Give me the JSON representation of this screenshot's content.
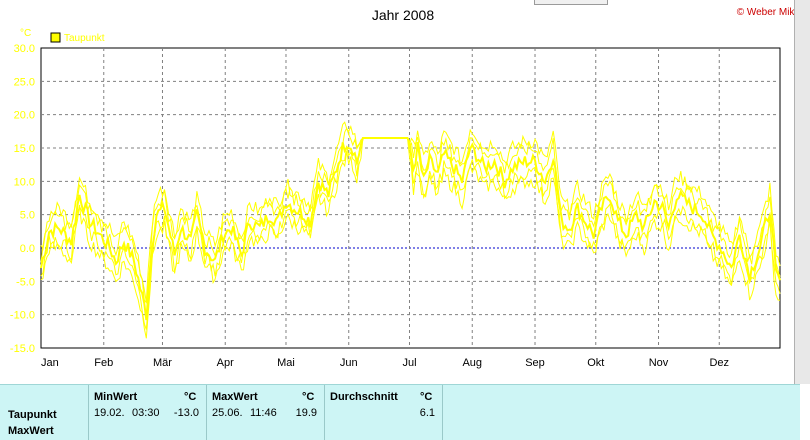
{
  "chart_data": {
    "type": "line",
    "title": "Jahr 2008",
    "credit": "© Weber Mike",
    "yunit": "°C",
    "ylim": [
      -15,
      30
    ],
    "yticks": [
      "-15.0",
      "-10.0",
      "-5.0",
      "0.0",
      "5.0",
      "10.0",
      "15.0",
      "20.0",
      "25.0",
      "30.0"
    ],
    "months": [
      "Jan",
      "Feb",
      "Mär",
      "Apr",
      "Mai",
      "Jun",
      "Jul",
      "Aug",
      "Sep",
      "Okt",
      "Nov",
      "Dez"
    ],
    "grid": true,
    "zero_line": true,
    "legend": "top-left",
    "series": [
      {
        "name": "Taupunkt",
        "color": "#ffff00",
        "x_unit": "day of year 2008",
        "x": [
          1,
          5,
          10,
          16,
          20,
          25,
          30,
          35,
          38,
          42,
          47,
          53,
          56,
          58,
          62,
          67,
          70,
          75,
          78,
          82,
          87,
          91,
          95,
          100,
          104,
          109,
          114,
          118,
          122,
          126,
          131,
          134,
          138,
          143,
          148,
          150,
          152,
          155,
          157,
          160,
          164,
          167,
          175,
          180,
          182,
          185,
          187,
          190,
          193,
          197,
          200,
          205,
          209,
          213,
          216,
          220,
          225,
          230,
          234,
          240,
          245,
          250,
          254,
          258,
          262,
          266,
          270,
          274,
          278,
          282,
          286,
          290,
          295,
          299,
          304,
          308,
          311,
          315,
          319,
          323,
          328,
          332,
          337,
          342,
          346,
          351,
          356,
          361,
          364,
          366
        ],
        "mean": [
          -3,
          2.5,
          3,
          1,
          8,
          4,
          2,
          0,
          -2,
          1,
          -2,
          -10,
          1,
          5,
          6,
          -1,
          3,
          1,
          5,
          0,
          -2,
          2,
          3,
          -1,
          4,
          3,
          5,
          4,
          7,
          6,
          5,
          4,
          10,
          8,
          13,
          15,
          16,
          15,
          13,
          16.5,
          16.5,
          16.5,
          16.5,
          16.5,
          16.5,
          12,
          15,
          10,
          13,
          11,
          14,
          12,
          10,
          15,
          14,
          12,
          13,
          10,
          12,
          13,
          13,
          10,
          14,
          4,
          3,
          6,
          4,
          2,
          6,
          8,
          4,
          2,
          5,
          3,
          7,
          6,
          3,
          8,
          7,
          6,
          5,
          2,
          0,
          -3,
          2,
          -4,
          0,
          6,
          -4,
          -5
        ],
        "spread": [
          2.5,
          2.5,
          3,
          3,
          2.5,
          3,
          3,
          3,
          3,
          3,
          3,
          2.5,
          3,
          3,
          3,
          3,
          3,
          3,
          2.5,
          2.5,
          2.5,
          2.5,
          2.5,
          2.5,
          2.5,
          2.5,
          2.5,
          2.5,
          2.5,
          2.5,
          2.5,
          2.5,
          2.5,
          2.5,
          2.5,
          2.5,
          2.5,
          2.5,
          2.5,
          0,
          0,
          0,
          0,
          0,
          0,
          3,
          3,
          3,
          3,
          3,
          3,
          3,
          3,
          3,
          3,
          3,
          3,
          3,
          3,
          3,
          3,
          3,
          3,
          3,
          3,
          3,
          3,
          3,
          3,
          3,
          3,
          3,
          3,
          3,
          3,
          3,
          3,
          3,
          3,
          3,
          3,
          3,
          3,
          3,
          3,
          3,
          3,
          3,
          3,
          3
        ]
      }
    ]
  },
  "footer": {
    "row_labels": [
      "Taupunkt",
      "MaxWert"
    ],
    "min": {
      "header": "MinWert",
      "unit": "°C",
      "date": "19.02.",
      "time": "03:30",
      "value": "-13.0"
    },
    "max": {
      "header": "MaxWert",
      "unit": "°C",
      "date": "25.06.",
      "time": "11:46",
      "value": "19.9"
    },
    "avg": {
      "header": "Durchschnitt",
      "unit": "°C",
      "value": "6.1"
    }
  },
  "colors": {
    "series": "#ffff00",
    "title": "#000000",
    "credit": "#cc0000",
    "axis_labels": "#000000",
    "ytick_labels": "#ffff00",
    "grid": "#808080",
    "zero_line": "#0000cc",
    "footer_bg": "#cdf5f5"
  }
}
